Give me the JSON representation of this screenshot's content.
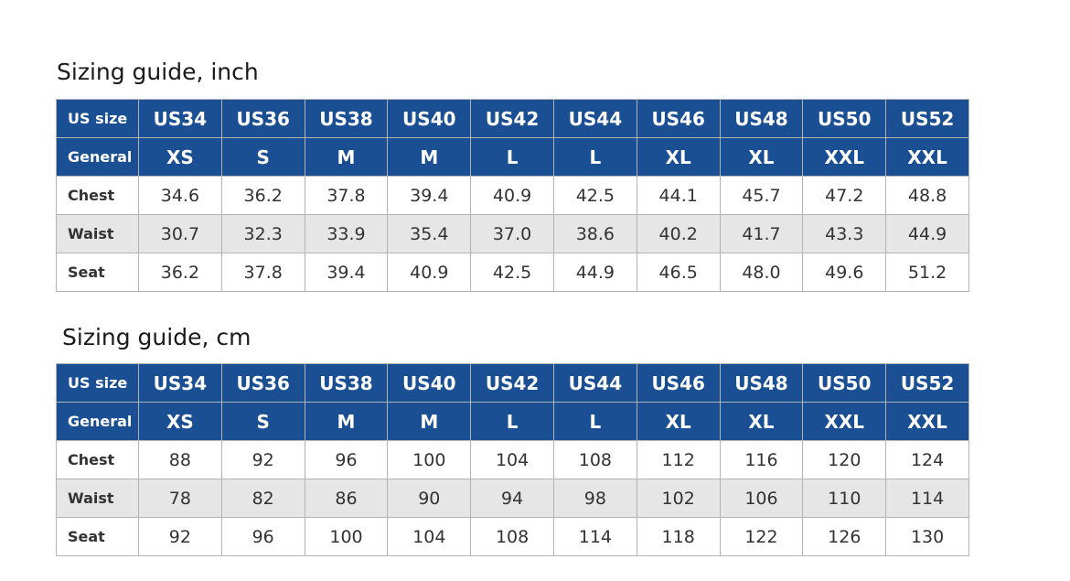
{
  "inch_guide": {
    "title": "Sizing guide, inch",
    "size_row": {
      "label": "US size",
      "values": [
        "US34",
        "US36",
        "US38",
        "US40",
        "US42",
        "US44",
        "US46",
        "US48",
        "US50",
        "US52"
      ]
    },
    "general_row": {
      "label": "General",
      "values": [
        "XS",
        "S",
        "M",
        "M",
        "L",
        "L",
        "XL",
        "XL",
        "XXL",
        "XXL"
      ]
    },
    "measurements": [
      {
        "label": "Chest",
        "values": [
          "34.6",
          "36.2",
          "37.8",
          "39.4",
          "40.9",
          "42.5",
          "44.1",
          "45.7",
          "47.2",
          "48.8"
        ]
      },
      {
        "label": "Waist",
        "values": [
          "30.7",
          "32.3",
          "33.9",
          "35.4",
          "37.0",
          "38.6",
          "40.2",
          "41.7",
          "43.3",
          "44.9"
        ]
      },
      {
        "label": "Seat",
        "values": [
          "36.2",
          "37.8",
          "39.4",
          "40.9",
          "42.5",
          "44.9",
          "46.5",
          "48.0",
          "49.6",
          "51.2"
        ]
      }
    ]
  },
  "cm_guide": {
    "title": "Sizing guide, cm",
    "size_row": {
      "label": "US size",
      "values": [
        "US34",
        "US36",
        "US38",
        "US40",
        "US42",
        "US44",
        "US46",
        "US48",
        "US50",
        "US52"
      ]
    },
    "general_row": {
      "label": "General",
      "values": [
        "XS",
        "S",
        "M",
        "M",
        "L",
        "L",
        "XL",
        "XL",
        "XXL",
        "XXL"
      ]
    },
    "measurements": [
      {
        "label": "Chest",
        "values": [
          "88",
          "92",
          "96",
          "100",
          "104",
          "108",
          "112",
          "116",
          "120",
          "124"
        ]
      },
      {
        "label": "Waist",
        "values": [
          "78",
          "82",
          "86",
          "90",
          "94",
          "98",
          "102",
          "106",
          "110",
          "114"
        ]
      },
      {
        "label": "Seat",
        "values": [
          "92",
          "96",
          "100",
          "104",
          "108",
          "114",
          "118",
          "122",
          "126",
          "130"
        ]
      }
    ]
  },
  "colors": {
    "header_blue": "#1b4f93",
    "shaded_row": "#e6e6e6",
    "grid_line": "#b3b3b3"
  }
}
